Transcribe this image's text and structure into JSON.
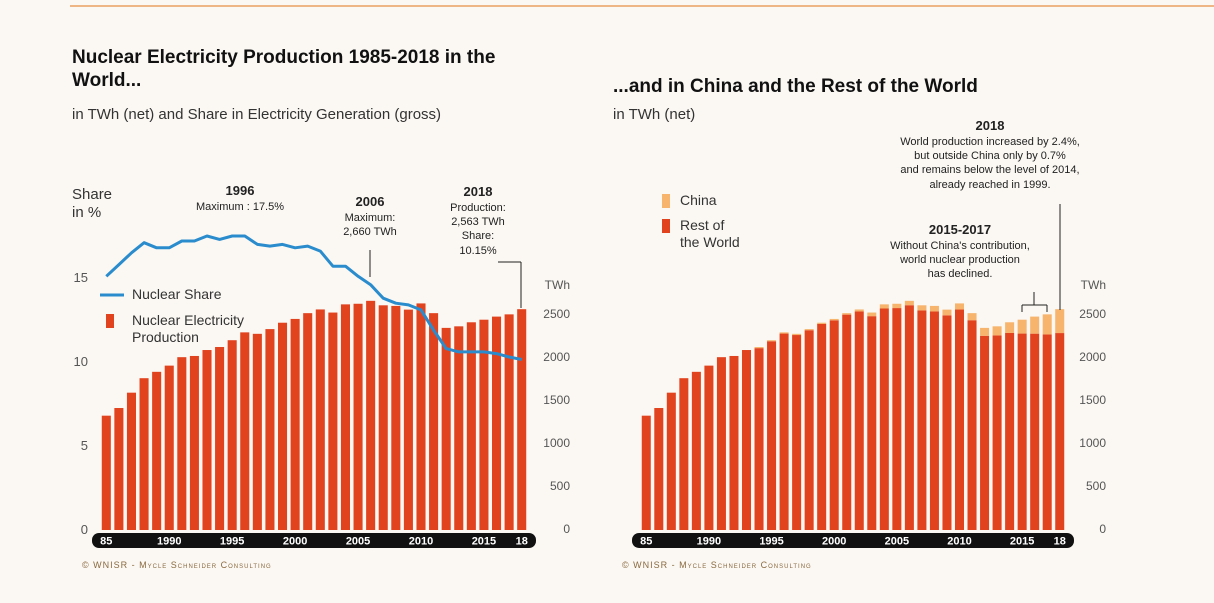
{
  "chart_data": [
    {
      "type": "bar",
      "title": "Nuclear Electricity Production 1985-2018 in the World...",
      "subtitle": "in TWh (net) and Share in Electricity Generation (gross)",
      "ylabel": "Share in %",
      "y2label": "TWh",
      "categories": [
        "85",
        null,
        null,
        null,
        null,
        "1990",
        null,
        null,
        null,
        null,
        "1995",
        null,
        null,
        null,
        null,
        "2000",
        null,
        null,
        null,
        null,
        "2005",
        null,
        null,
        null,
        null,
        "2010",
        null,
        null,
        null,
        null,
        "2015",
        null,
        null,
        "18"
      ],
      "series": [
        {
          "name": "Nuclear Electricity Production",
          "color": "#e2431f",
          "axis": "y2",
          "values": [
            1327,
            1416,
            1594,
            1762,
            1836,
            1908,
            2006,
            2020,
            2089,
            2124,
            2203,
            2294,
            2277,
            2332,
            2406,
            2450,
            2517,
            2560,
            2524,
            2619,
            2626,
            2660,
            2608,
            2601,
            2558,
            2630,
            2517,
            2346,
            2364,
            2411,
            2441,
            2477,
            2503,
            2563
          ]
        },
        {
          "name": "Nuclear Share",
          "type": "line",
          "color": "#2a8ccd",
          "values": [
            15.1,
            15.8,
            16.5,
            17.1,
            16.8,
            16.8,
            17.2,
            17.2,
            17.5,
            17.3,
            17.5,
            17.5,
            17.0,
            16.9,
            17.0,
            16.8,
            16.9,
            16.6,
            15.7,
            15.7,
            15.1,
            14.6,
            13.8,
            13.5,
            13.4,
            13.1,
            11.9,
            10.8,
            10.6,
            10.6,
            10.6,
            10.5,
            10.3,
            10.15
          ]
        }
      ],
      "ylim": [
        0,
        20
      ],
      "yticks": [
        0,
        5,
        10,
        15
      ],
      "y2lim": [
        0,
        3900
      ],
      "y2ticks": [
        0,
        500,
        1000,
        1500,
        2000,
        2500
      ],
      "grid": false,
      "annotations": [
        {
          "label": "1996",
          "text": [
            "Maximum : 17.5%"
          ]
        },
        {
          "label": "2006",
          "text": [
            "Maximum:",
            "2,660 TWh"
          ]
        },
        {
          "label": "2018",
          "text": [
            "Production:",
            "2,563 TWh",
            "Share:",
            "10.15%"
          ]
        }
      ],
      "source": "© WNISR - Mycle Schneider Consulting"
    },
    {
      "type": "bar",
      "stacked": true,
      "title": "...and in China and the Rest of the World",
      "subtitle": "in TWh (net)",
      "ylabel": "TWh",
      "categories": [
        "85",
        null,
        null,
        null,
        null,
        "1990",
        null,
        null,
        null,
        null,
        "1995",
        null,
        null,
        null,
        null,
        "2000",
        null,
        null,
        null,
        null,
        "2005",
        null,
        null,
        null,
        null,
        "2010",
        null,
        null,
        null,
        null,
        "2015",
        null,
        null,
        "18"
      ],
      "series": [
        {
          "name": "Rest of the World",
          "color": "#e2431f",
          "values": [
            1327,
            1416,
            1594,
            1762,
            1836,
            1908,
            2006,
            2020,
            2089,
            2111,
            2191,
            2280,
            2263,
            2319,
            2392,
            2434,
            2500,
            2536,
            2482,
            2571,
            2576,
            2609,
            2549,
            2536,
            2492,
            2559,
            2435,
            2254,
            2259,
            2287,
            2280,
            2279,
            2270,
            2286
          ]
        },
        {
          "name": "China",
          "color": "#f6b46c",
          "values": [
            0,
            0,
            0,
            0,
            0,
            0,
            0,
            0,
            0,
            13,
            12,
            14,
            14,
            13,
            14,
            16,
            17,
            24,
            42,
            48,
            50,
            51,
            59,
            65,
            66,
            71,
            82,
            92,
            105,
            124,
            161,
            198,
            233,
            277
          ]
        }
      ],
      "ylim": [
        0,
        3900
      ],
      "yticks": [
        0,
        500,
        1000,
        1500,
        2000,
        2500
      ],
      "grid": false,
      "annotations": [
        {
          "label": "2018",
          "text": [
            "World production increased by 2.4%,",
            "but outside China only by 0.7%",
            "and remains below the level of 2014,",
            "already reached in 1999."
          ]
        },
        {
          "label": "2015-2017",
          "text": [
            "Without China's contribution,",
            "world nuclear production",
            "has declined."
          ]
        }
      ],
      "source": "© WNISR - Mycle Schneider Consulting"
    }
  ]
}
